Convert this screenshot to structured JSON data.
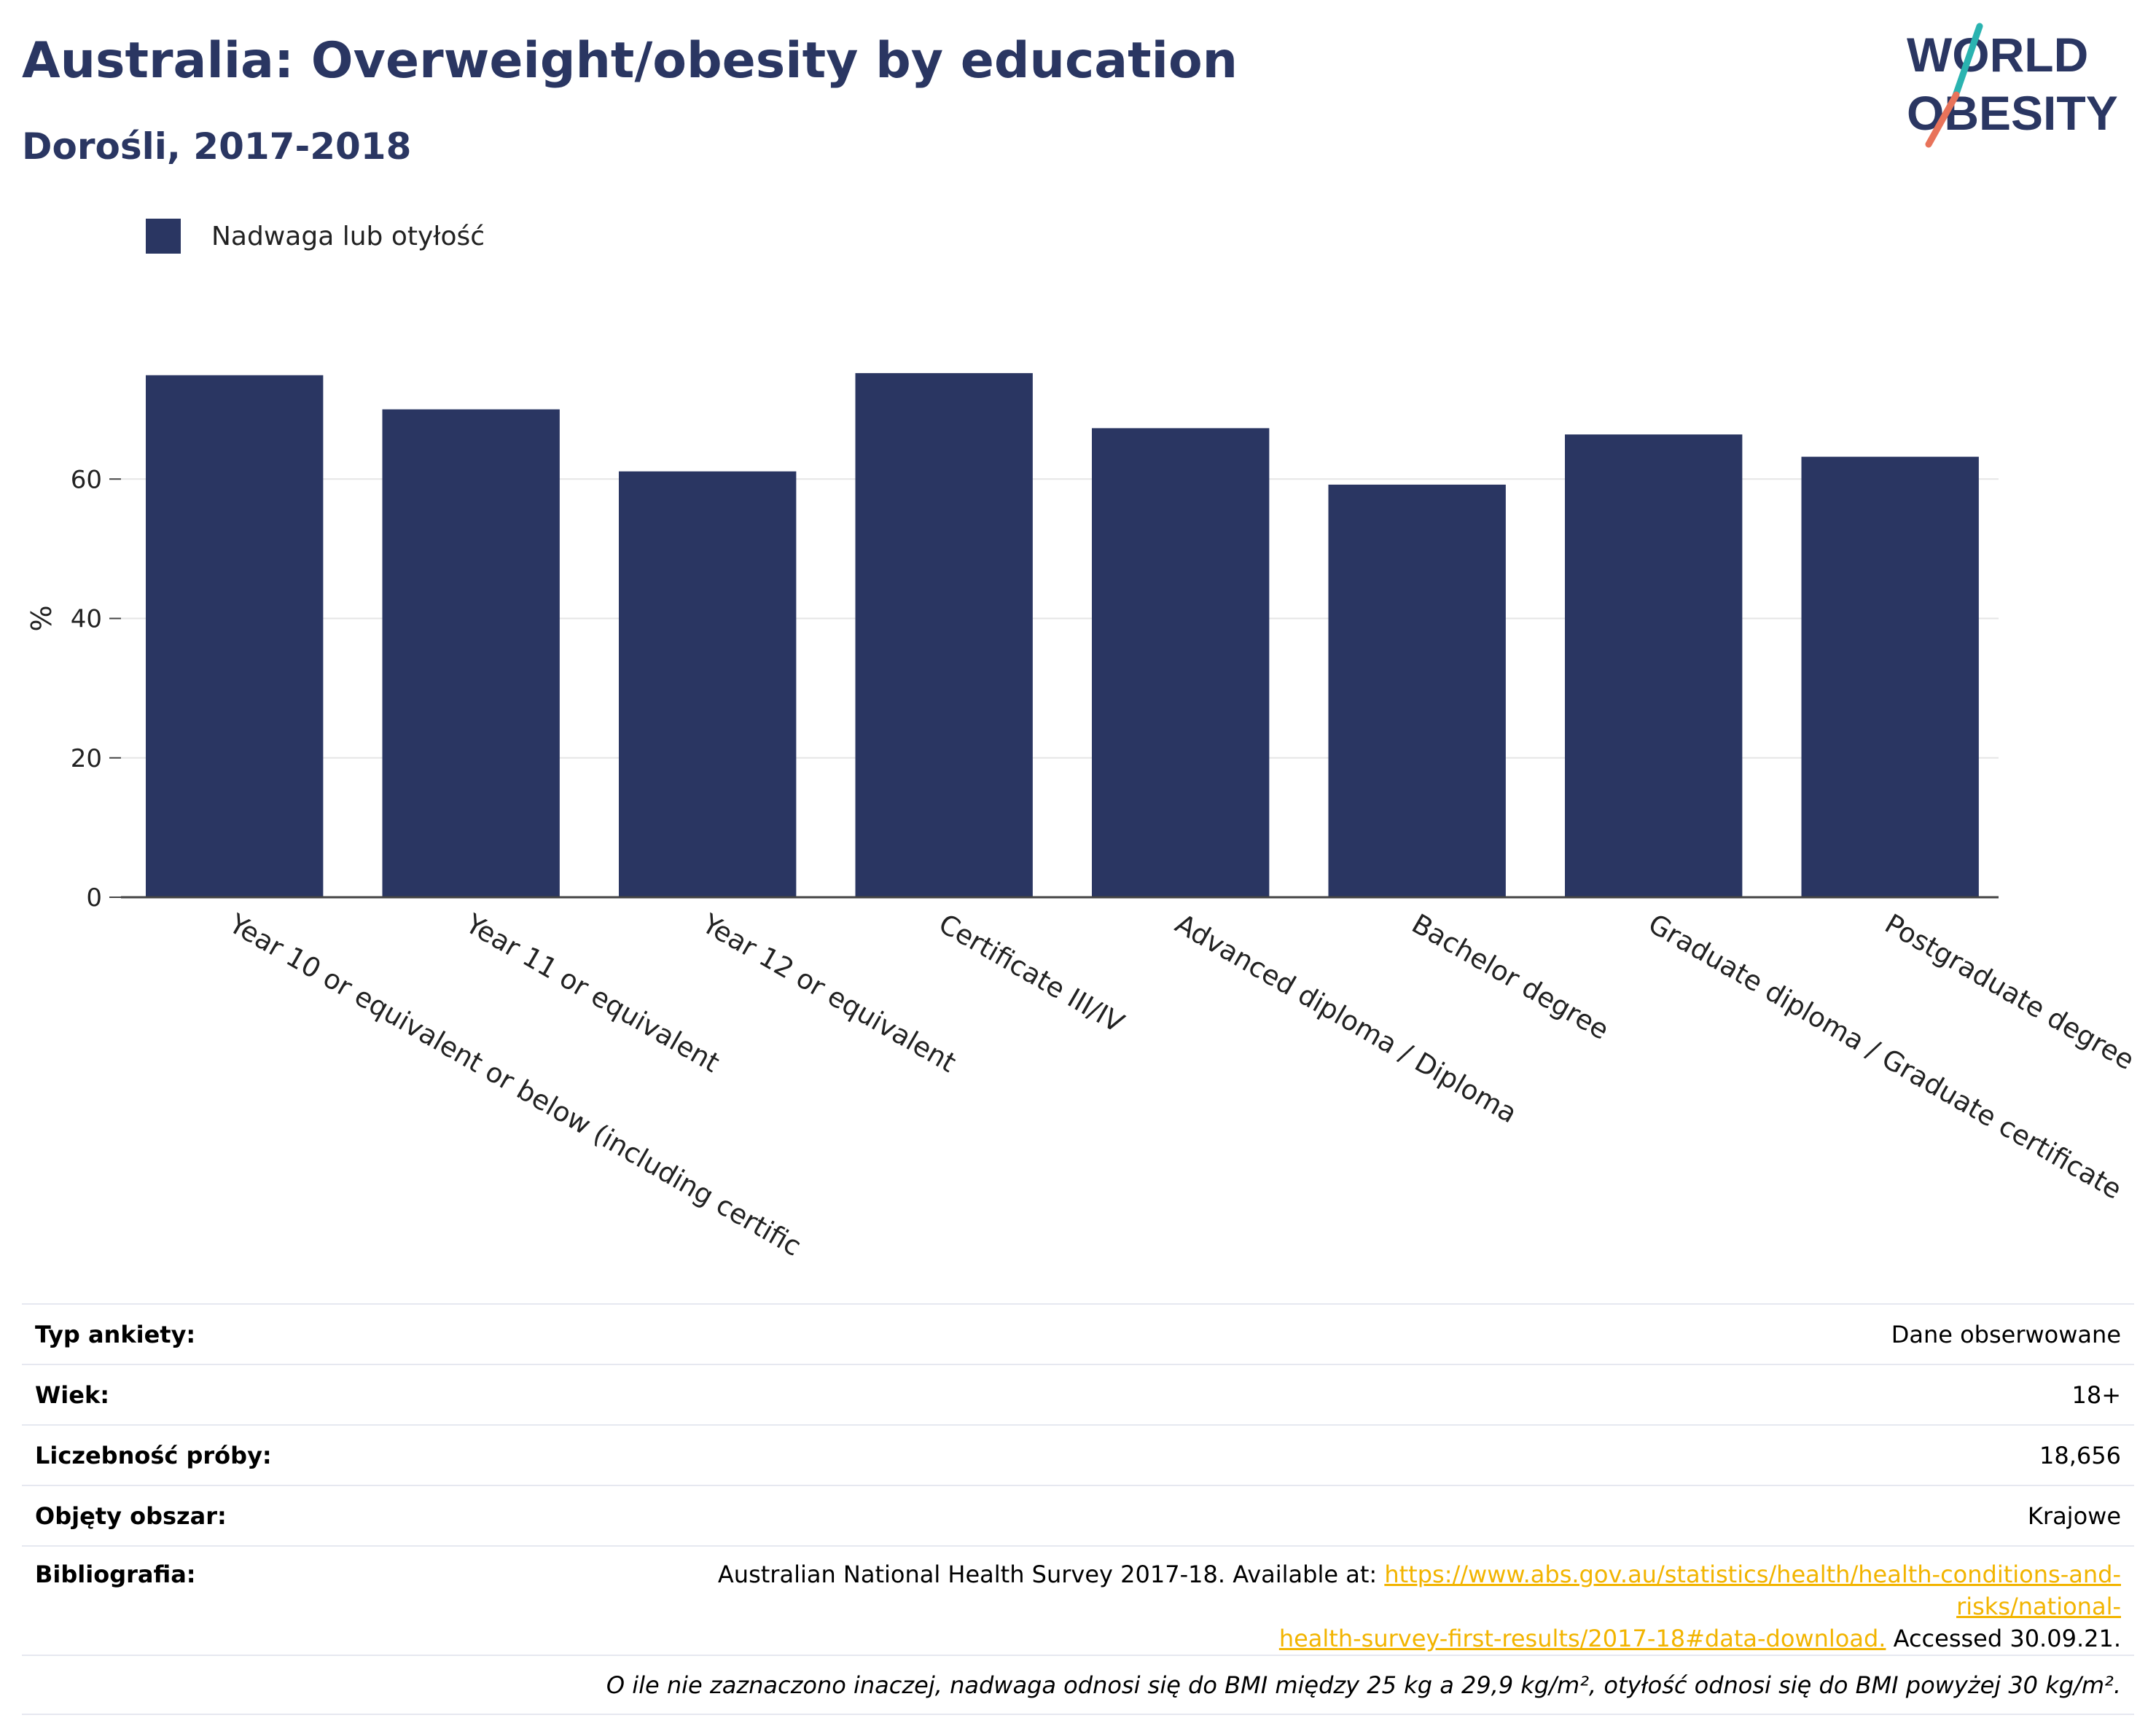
{
  "header": {
    "title": "Australia: Overweight/obesity by education",
    "subtitle": "Dorośli, 2017-2018",
    "logo_line1": "WORLD",
    "logo_line2": "OBESITY"
  },
  "colors": {
    "bar": "#2a3662",
    "title": "#2a3662",
    "link": "#f2b400",
    "logo_slash_top": "#2ab3b0",
    "logo_slash_bottom": "#e8735a"
  },
  "chart_data": {
    "type": "bar",
    "title": "Australia: Overweight/obesity by education",
    "subtitle": "Dorośli, 2017-2018",
    "ylabel": "%",
    "xlabel": "",
    "ylim": [
      0,
      80
    ],
    "yticks": [
      0,
      20,
      40,
      60
    ],
    "grid": true,
    "legend_position": "top-left",
    "categories": [
      "Year 10 or equivalent or below (including certific",
      "Year 11 or equivalent",
      "Year 12 or equivalent",
      "Certificate III/IV",
      "Advanced diploma / Diploma",
      "Bachelor degree",
      "Graduate diploma / Graduate certificate",
      "Postgraduate degree"
    ],
    "series": [
      {
        "name": "Nadwaga lub otyłość",
        "values": [
          74.9,
          70.0,
          61.1,
          75.2,
          67.3,
          59.2,
          66.4,
          63.2
        ]
      }
    ]
  },
  "info": {
    "rows": [
      {
        "label": "Typ ankiety:",
        "value": "Dane obserwowane"
      },
      {
        "label": "Wiek:",
        "value": "18+"
      },
      {
        "label": "Liczebność próby:",
        "value": "18,656"
      },
      {
        "label": "Objęty obszar:",
        "value": "Krajowe"
      }
    ],
    "bibliography": {
      "label": "Bibliografia:",
      "prefix": "Australian National Health Survey 2017-18. Available at: ",
      "link_line1": "https://www.abs.gov.au/statistics/health/health-conditions-and-risks/national-",
      "link_line2": "health-survey-first-results/2017-18#data-download.",
      "suffix": " Accessed 30.09.21."
    },
    "note": "O ile nie zaznaczono inaczej, nadwaga odnosi się do BMI między 25 kg a 29,9 kg/m², otyłość odnosi się do BMI powyżej 30 kg/m²."
  }
}
